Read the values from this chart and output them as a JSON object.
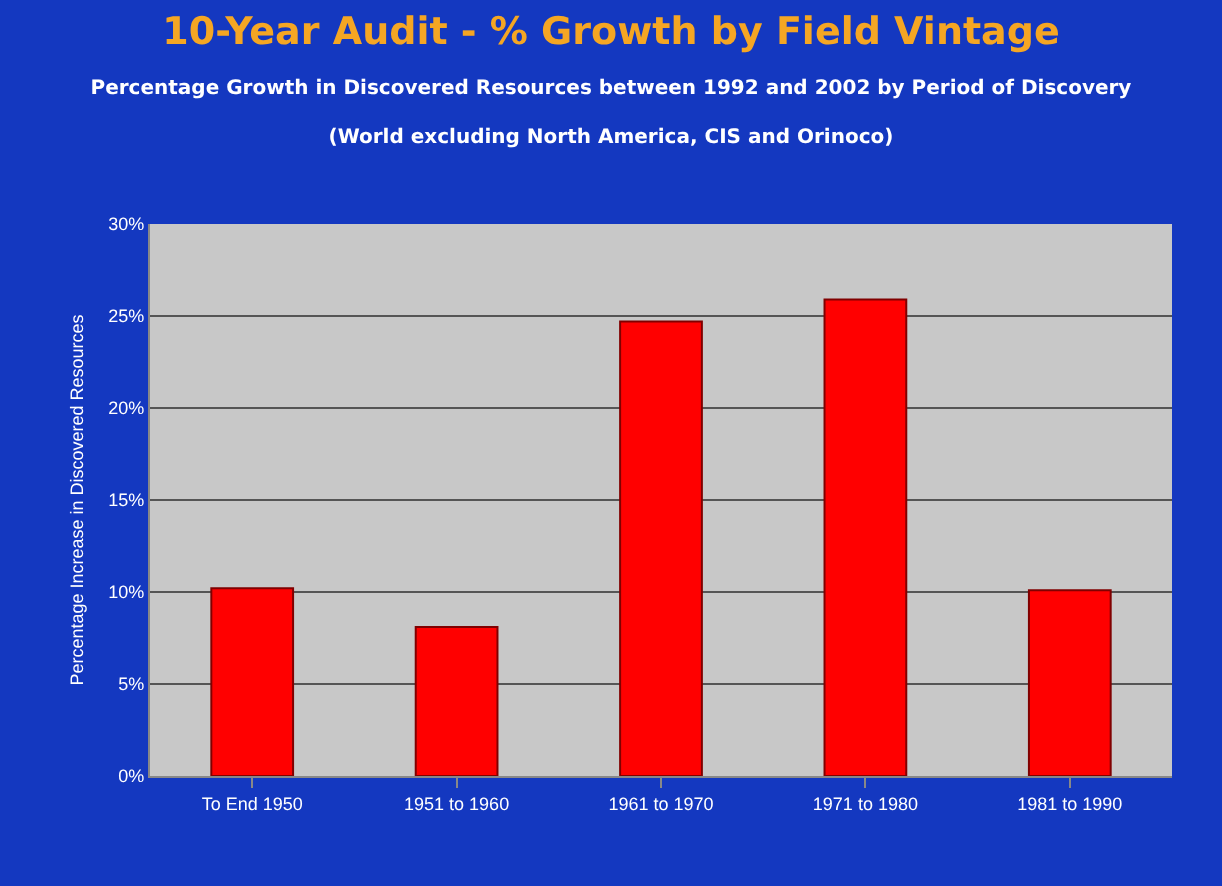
{
  "chart_data": {
    "type": "bar",
    "title": "10-Year Audit - % Growth by Field Vintage",
    "subtitle": "Percentage Growth in Discovered Resources between 1992 and 2002 by Period of Discovery (World excluding North America, CIS and Orinoco)",
    "ylabel": "Percentage Increase in Discovered Resources",
    "categories": [
      "To End 1950",
      "1951 to 1960",
      "1961 to 1970",
      "1971 to 1980",
      "1981 to 1990"
    ],
    "values": [
      10.2,
      8.1,
      24.7,
      25.9,
      10.1
    ],
    "color": "#ff0000",
    "ylim": [
      0,
      30
    ],
    "yticks": [
      {
        "value": 0,
        "label": "0%"
      },
      {
        "value": 5,
        "label": "5%"
      },
      {
        "value": 10,
        "label": "10%"
      },
      {
        "value": 15,
        "label": "15%"
      },
      {
        "value": 20,
        "label": "20%"
      },
      {
        "value": 25,
        "label": "25%"
      },
      {
        "value": 30,
        "label": "30%"
      }
    ],
    "grid": "y"
  }
}
